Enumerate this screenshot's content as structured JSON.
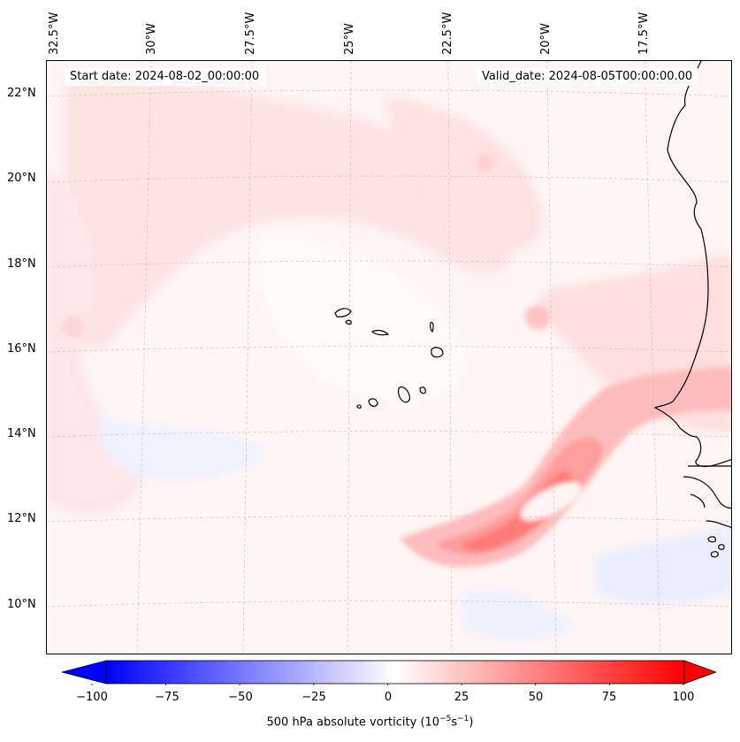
{
  "map": {
    "start_date": "Start date: 2024-08-02_00:00:00",
    "valid_date": "Valid_date: 2024-08-05T00:00:00.00",
    "lon_labels": [
      "32.5°W",
      "30°W",
      "27.5°W",
      "25°W",
      "22.5°W",
      "20°W",
      "17.5°W"
    ],
    "lat_labels": [
      "22°N",
      "20°N",
      "18°N",
      "16°N",
      "14°N",
      "12°N",
      "10°N"
    ],
    "extent": {
      "lon_min": -32.7,
      "lon_max": -15.5,
      "lat_min": 8.8,
      "lat_max": 22.7
    },
    "field": "500 hPa absolute vorticity",
    "colors": {
      "land_outline": "#000000",
      "background_low": "#fff6f6",
      "grid": "#bbbbbb"
    }
  },
  "colorbar": {
    "min": -100,
    "max": 100,
    "ticks": [
      "−100",
      "−75",
      "−50",
      "−25",
      "0",
      "25",
      "50",
      "75",
      "100"
    ],
    "label": "500 hPa absolute vorticity (10",
    "label_sup1": "−5",
    "label_mid": "s",
    "label_sup2": "−1",
    "label_end": ")",
    "colormap": "bwr"
  }
}
